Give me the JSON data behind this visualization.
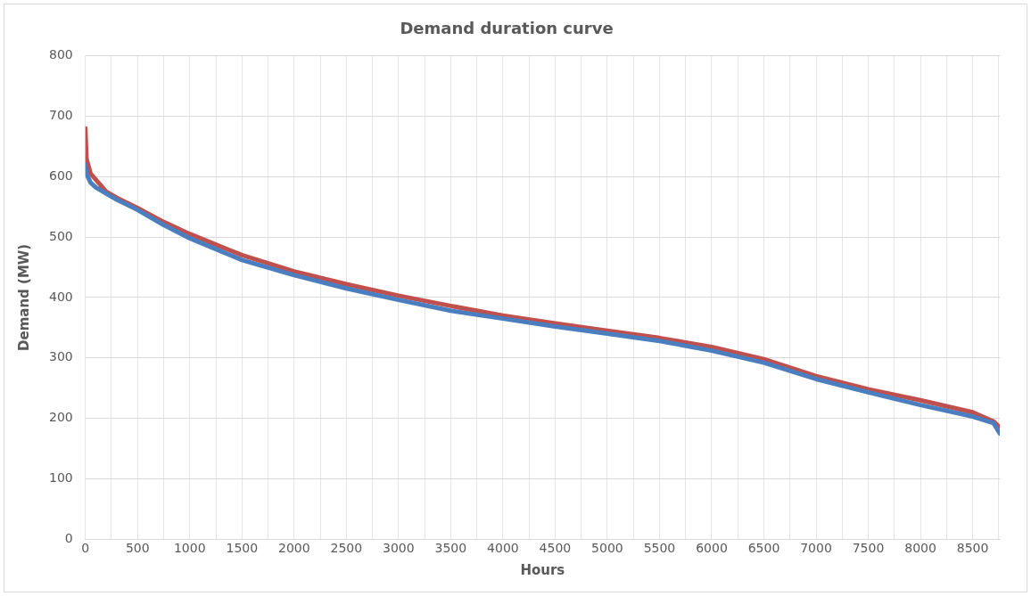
{
  "chart_data": {
    "type": "line",
    "title": "Demand duration curve",
    "xlabel": "Hours",
    "ylabel": "Demand (MW)",
    "xlim": [
      0,
      8760
    ],
    "ylim": [
      0,
      800
    ],
    "xticks": [
      0,
      {
        "value": 250,
        "label": null
      },
      500,
      {
        "value": 750,
        "label": null
      },
      1000,
      {
        "value": 1250,
        "label": null
      },
      1500,
      {
        "value": 1750,
        "label": null
      },
      2000,
      {
        "value": 2250,
        "label": null
      },
      2500,
      {
        "value": 2750,
        "label": null
      },
      3000,
      {
        "value": 3250,
        "label": null
      },
      3500,
      {
        "value": 3750,
        "label": null
      },
      4000,
      {
        "value": 4250,
        "label": null
      },
      4500,
      {
        "value": 4750,
        "label": null
      },
      5000,
      {
        "value": 5250,
        "label": null
      },
      5500,
      {
        "value": 5750,
        "label": null
      },
      6000,
      {
        "value": 6250,
        "label": null
      },
      6500,
      {
        "value": 6750,
        "label": null
      },
      7000,
      {
        "value": 7250,
        "label": null
      },
      7500,
      {
        "value": 7750,
        "label": null
      },
      8000,
      {
        "value": 8250,
        "label": null
      },
      8500,
      {
        "value": 8750,
        "label": null
      }
    ],
    "yticks": [
      0,
      100,
      200,
      300,
      400,
      500,
      600,
      700,
      800
    ],
    "grid": true,
    "legend": false,
    "marker": "none",
    "line_style": "solid",
    "series": [
      {
        "color": "#4a7ebf",
        "x": [
          0,
          10,
          50,
          100,
          200,
          300,
          500,
          750,
          1000,
          1500,
          2000,
          2500,
          3000,
          3500,
          4000,
          4500,
          5000,
          5500,
          6000,
          6500,
          7000,
          7500,
          8000,
          8500,
          8700,
          8760
        ],
        "values": [
          620,
          605,
          590,
          582,
          572,
          562,
          545,
          520,
          498,
          462,
          437,
          415,
          396,
          378,
          365,
          352,
          340,
          328,
          312,
          292,
          265,
          243,
          222,
          203,
          192,
          175
        ]
      },
      {
        "color": "#c0504d",
        "x": [
          0,
          10,
          50,
          100,
          200,
          300,
          500,
          750,
          1000,
          1500,
          2000,
          2500,
          3000,
          3500,
          4000,
          4500,
          5000,
          5500,
          6000,
          6500,
          7000,
          7500,
          8000,
          8500,
          8700,
          8760
        ],
        "values": [
          680,
          630,
          605,
          595,
          575,
          565,
          548,
          525,
          505,
          470,
          443,
          422,
          403,
          386,
          370,
          357,
          345,
          333,
          318,
          298,
          270,
          248,
          230,
          210,
          195,
          185
        ]
      }
    ]
  }
}
